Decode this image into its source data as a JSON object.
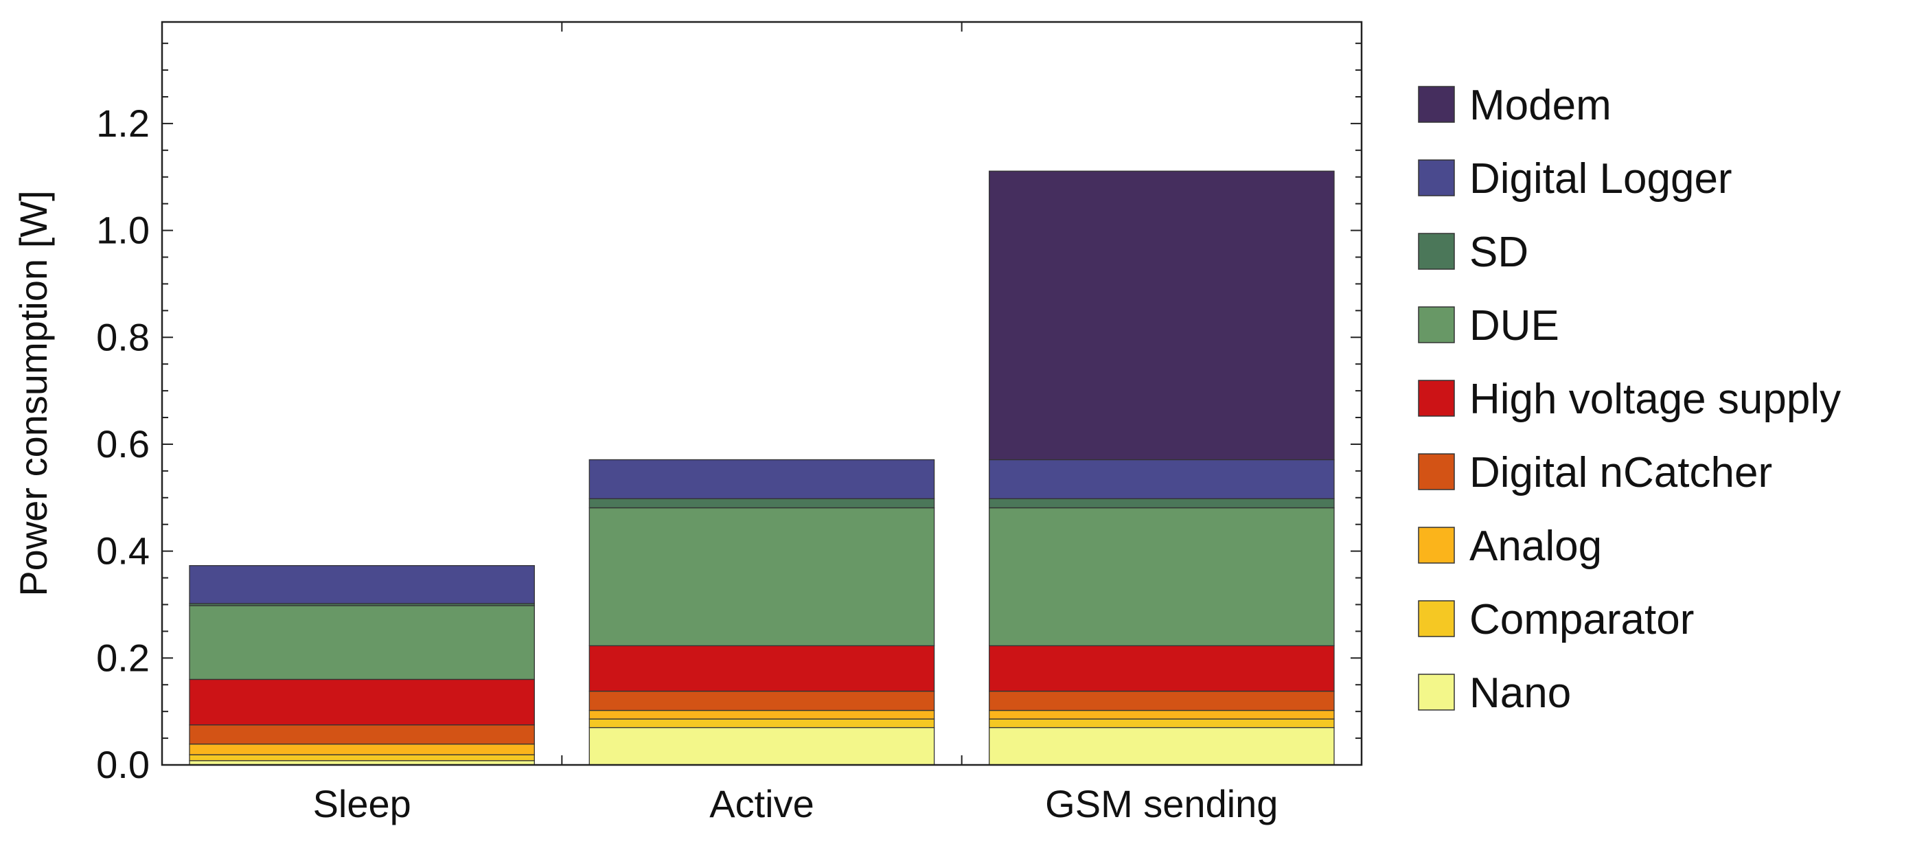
{
  "chart_data": {
    "type": "bar",
    "stacked": true,
    "title": "",
    "xlabel": "",
    "ylabel": "Power consumption [W]",
    "ylim": [
      0,
      1.39
    ],
    "yticks": [
      "0.0",
      "0.2",
      "0.4",
      "0.6",
      "0.8",
      "1.0",
      "1.2"
    ],
    "categories": [
      "Sleep",
      "Active",
      "GSM sending"
    ],
    "legend_position": "right",
    "series": [
      {
        "name": "Nano",
        "color": "#f3f78a",
        "values": [
          0.008,
          0.07,
          0.07
        ]
      },
      {
        "name": "Comparator",
        "color": "#f5c823",
        "values": [
          0.011,
          0.016,
          0.016
        ]
      },
      {
        "name": "Analog",
        "color": "#fbb41b",
        "values": [
          0.02,
          0.016,
          0.016
        ]
      },
      {
        "name": "Digital nCatcher",
        "color": "#d35315",
        "values": [
          0.036,
          0.036,
          0.036
        ]
      },
      {
        "name": "High voltage supply",
        "color": "#cc1316",
        "values": [
          0.085,
          0.085,
          0.085
        ]
      },
      {
        "name": "DUE",
        "color": "#689866",
        "values": [
          0.138,
          0.258,
          0.258
        ]
      },
      {
        "name": "SD",
        "color": "#4b7759",
        "values": [
          0.004,
          0.017,
          0.017
        ]
      },
      {
        "name": "Digital Logger",
        "color": "#4a4a8e",
        "values": [
          0.071,
          0.073,
          0.073
        ]
      },
      {
        "name": "Modem",
        "color": "#452e5e",
        "values": [
          0,
          0,
          0.54
        ]
      }
    ]
  }
}
